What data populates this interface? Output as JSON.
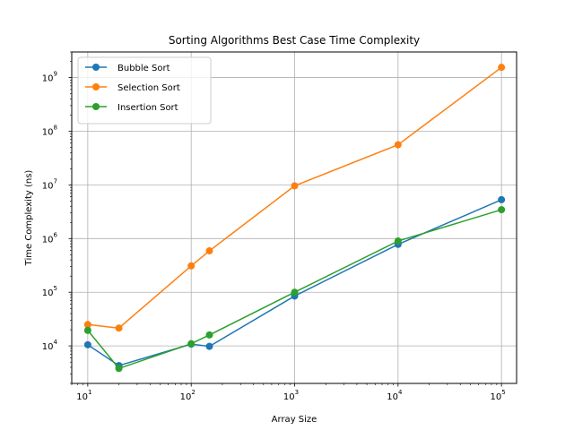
{
  "chart_data": {
    "type": "line",
    "title": "Sorting Algorithms Best Case Time Complexity",
    "xlabel": "Array Size",
    "ylabel": "Time Complexity (ns)",
    "xscale": "log",
    "yscale": "log",
    "xlim": [
      7,
      140000
    ],
    "ylim": [
      2000,
      3000000000
    ],
    "grid": true,
    "legend": "top-left",
    "x_ticks": [
      {
        "base": "10",
        "exp": "1",
        "value": 10
      },
      {
        "base": "10",
        "exp": "2",
        "value": 100
      },
      {
        "base": "10",
        "exp": "3",
        "value": 1000
      },
      {
        "base": "10",
        "exp": "4",
        "value": 10000
      },
      {
        "base": "10",
        "exp": "5",
        "value": 100000
      }
    ],
    "y_ticks": [
      {
        "base": "10",
        "exp": "4",
        "value": 10000
      },
      {
        "base": "10",
        "exp": "5",
        "value": 100000
      },
      {
        "base": "10",
        "exp": "6",
        "value": 1000000
      },
      {
        "base": "10",
        "exp": "7",
        "value": 10000000
      },
      {
        "base": "10",
        "exp": "8",
        "value": 100000000
      },
      {
        "base": "10",
        "exp": "9",
        "value": 1000000000
      }
    ],
    "x": [
      10,
      20,
      100,
      150,
      1000,
      10000,
      100000
    ],
    "series": [
      {
        "name": "Bubble Sort",
        "color": "#1f77b4",
        "values": [
          10500,
          4300,
          10800,
          9800,
          85000,
          780000,
          5300000
        ]
      },
      {
        "name": "Selection Sort",
        "color": "#ff7f0e",
        "values": [
          25000,
          21500,
          310000,
          590000,
          9600000,
          56000000,
          1550000000
        ]
      },
      {
        "name": "Insertion Sort",
        "color": "#2ca02c",
        "values": [
          19500,
          3800,
          11000,
          16000,
          100000,
          900000,
          3450000
        ]
      }
    ]
  }
}
